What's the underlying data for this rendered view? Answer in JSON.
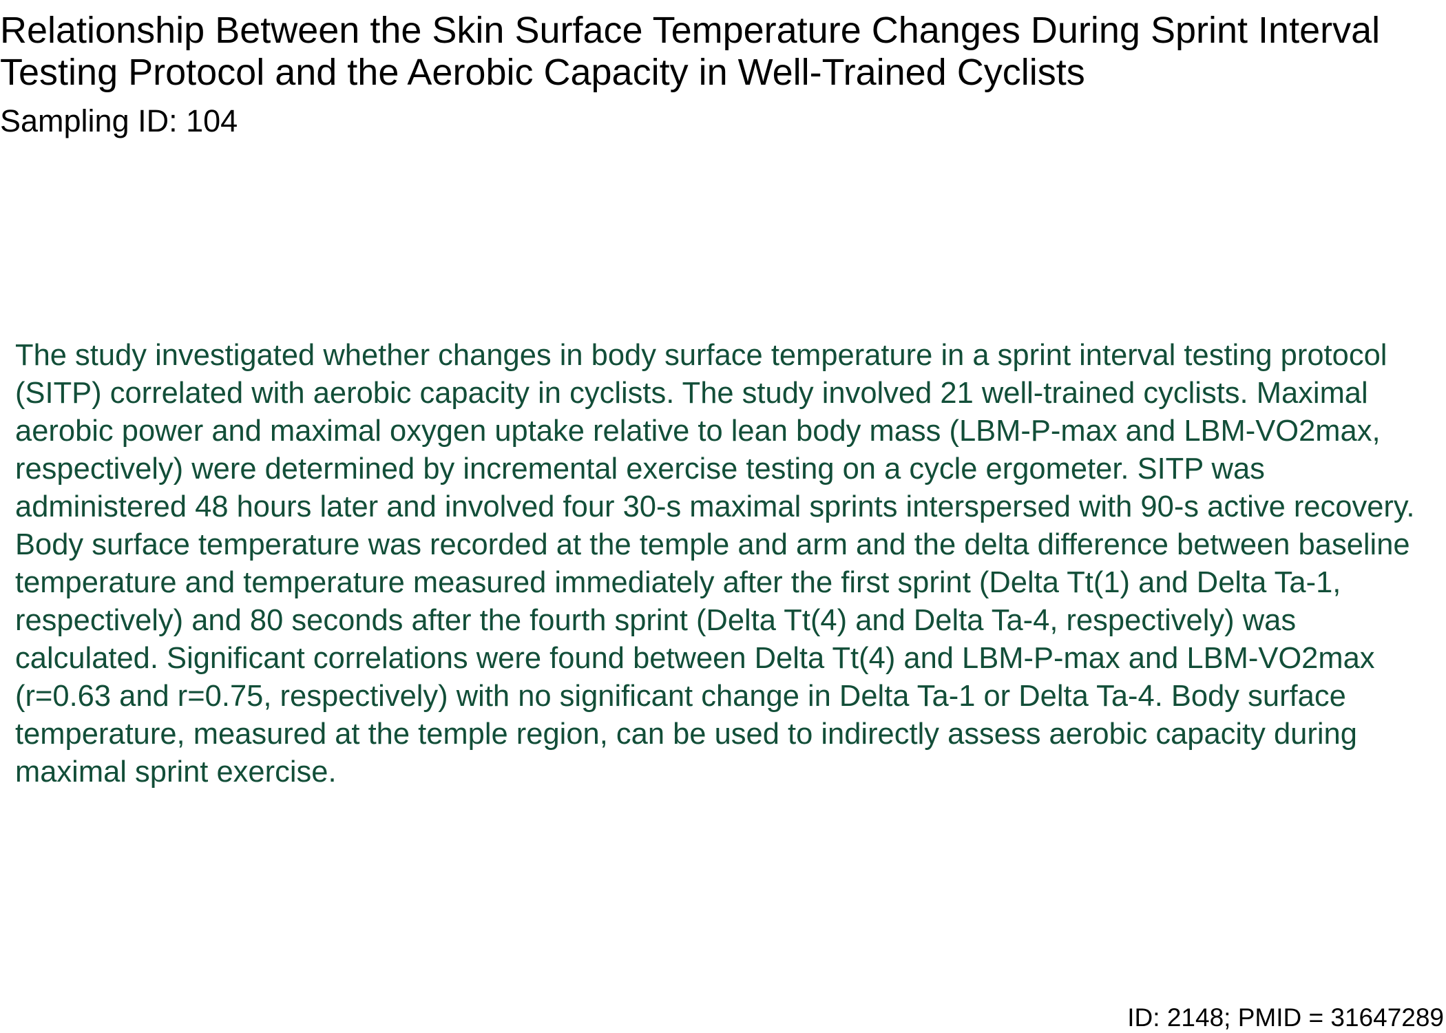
{
  "document": {
    "title": "Relationship Between the Skin Surface Temperature Changes During Sprint Interval Testing Protocol and the Aerobic Capacity in Well-Trained Cyclists",
    "sampling_id": "Sampling ID: 104",
    "abstract": "The study investigated whether changes in body surface temperature in a sprint interval testing protocol (SITP) correlated with aerobic capacity in cyclists. The study involved 21 well-trained cyclists. Maximal aerobic power and maximal oxygen uptake relative to lean body mass (LBM-P-max and LBM-VO2max, respectively) were determined by incremental exercise testing on a cycle ergometer. SITP was administered 48 hours later and involved four 30-s maximal sprints interspersed with 90-s active recovery. Body surface temperature was recorded at the temple and arm and the delta difference between baseline temperature and temperature measured immediately after the first sprint (Delta Tt(1) and Delta Ta-1, respectively) and 80 seconds after the fourth sprint (Delta Tt(4) and Delta Ta-4, respectively) was calculated. Significant correlations were found between Delta Tt(4) and LBM-P-max and LBM-VO2max (r=0.63 and r=0.75, respectively) with no significant change in Delta Ta-1 or Delta Ta-4. Body surface temperature, measured at the temple region, can be used to indirectly assess aerobic capacity during maximal sprint exercise.",
    "footer_id": "ID: 2148; PMID = 31647289"
  },
  "colors": {
    "title_text": "#000000",
    "abstract_text": "#124e38",
    "background": "#ffffff"
  }
}
